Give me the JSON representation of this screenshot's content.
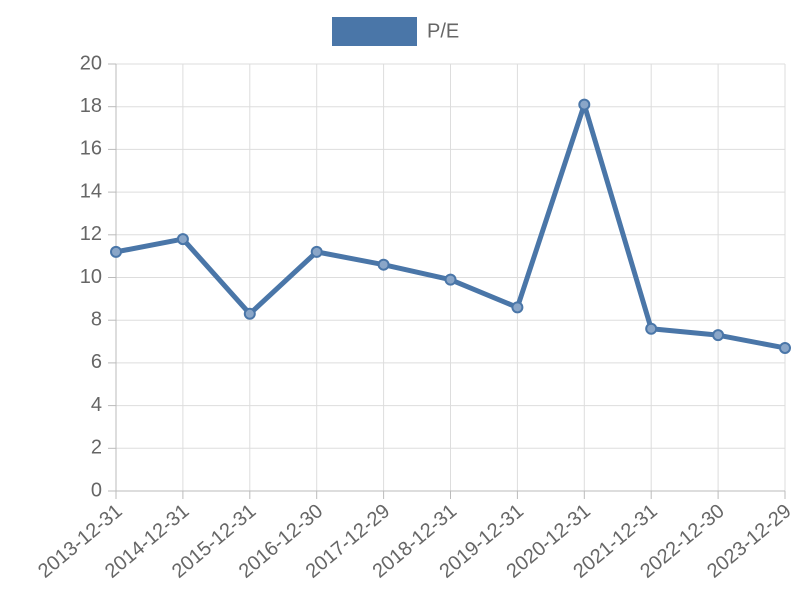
{
  "chart_data": {
    "type": "line",
    "categories": [
      "2013-12-31",
      "2014-12-31",
      "2015-12-31",
      "2016-12-30",
      "2017-12-29",
      "2018-12-31",
      "2019-12-31",
      "2020-12-31",
      "2021-12-31",
      "2022-12-30",
      "2023-12-29"
    ],
    "series": [
      {
        "name": "P/E",
        "color": "#4a76a8",
        "values": [
          11.2,
          11.8,
          8.3,
          11.2,
          10.6,
          9.9,
          8.6,
          18.1,
          7.6,
          7.3,
          6.7
        ]
      }
    ],
    "ylim": [
      0,
      20
    ],
    "yticks": [
      0,
      2,
      4,
      6,
      8,
      10,
      12,
      14,
      16,
      18,
      20
    ],
    "grid": true,
    "legend": "top"
  }
}
